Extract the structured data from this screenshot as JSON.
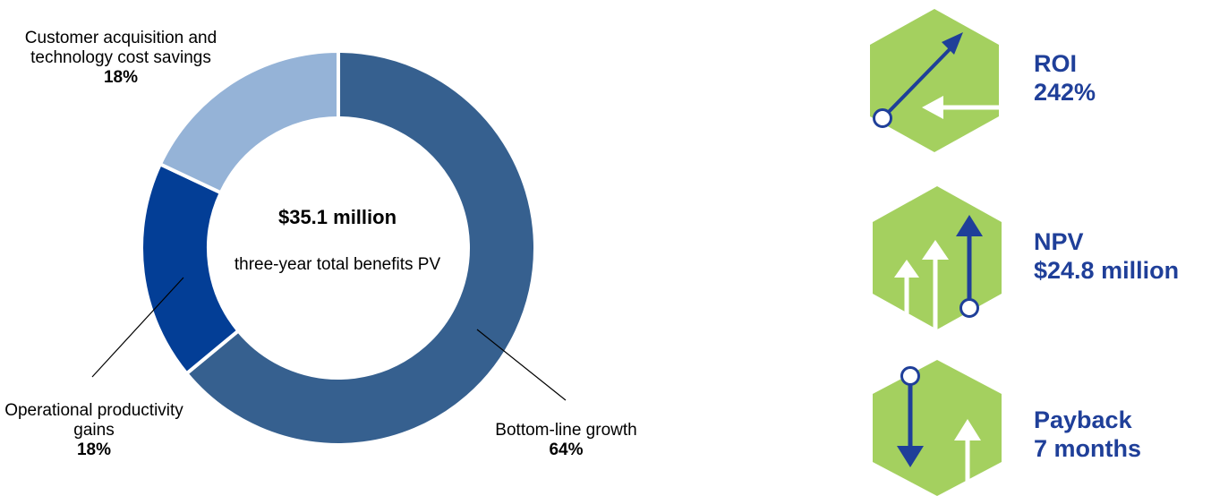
{
  "chart_data": {
    "type": "pie",
    "style": "donut",
    "center_label": "$35.1 million",
    "center_caption": "three-year total benefits PV",
    "slices": [
      {
        "label": "Bottom-line growth",
        "value": 64,
        "display": "64%",
        "color": "#36608f"
      },
      {
        "label": "Operational productivity gains",
        "value": 18,
        "display": "18%",
        "color": "#033e96"
      },
      {
        "label": "Customer acquisition and technology cost savings",
        "value": 18,
        "display": "18%",
        "color": "#95b3d7"
      }
    ]
  },
  "labels": {
    "customer": {
      "text": "Customer acquisition and technology cost savings",
      "pct": "18%"
    },
    "operational": {
      "text": "Operational productivity gains",
      "pct": "18%"
    },
    "bottom": {
      "text": "Bottom-line growth",
      "pct": "64%"
    }
  },
  "metrics": {
    "roi": {
      "label": "ROI",
      "value": "242%",
      "icon": "roi-arrow-icon"
    },
    "npv": {
      "label": "NPV",
      "value": "$24.8 million",
      "icon": "npv-arrows-icon"
    },
    "payback": {
      "label": "Payback",
      "value": "7 months",
      "icon": "payback-arrows-icon"
    }
  },
  "colors": {
    "hexagon": "#a4d05f",
    "accent": "#1f3f99",
    "white": "#ffffff"
  }
}
